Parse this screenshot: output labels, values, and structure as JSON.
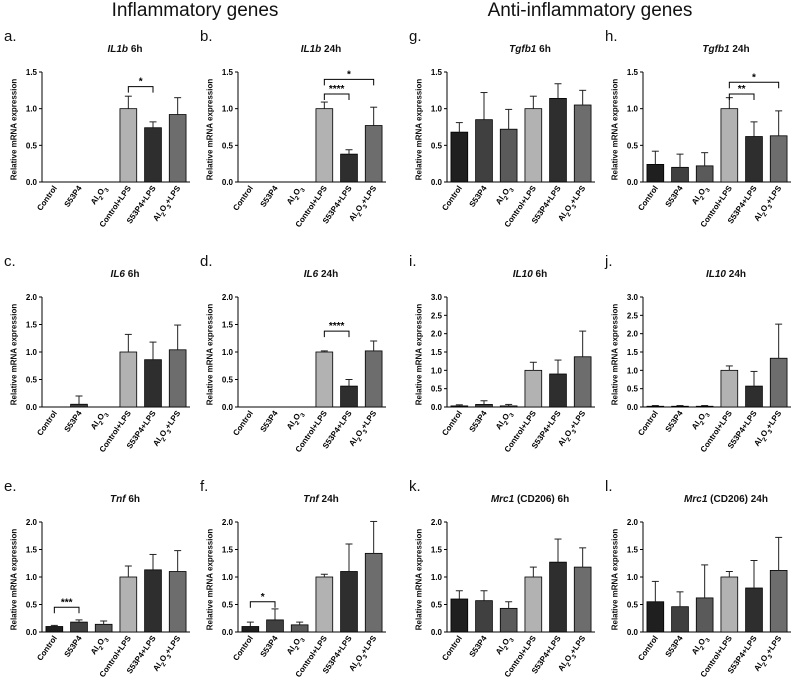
{
  "header": {
    "inflammatory": "Inflammatory genes",
    "anti_inflammatory": "Anti-inflammatory genes"
  },
  "colors": {
    "Control": "#1f1f1f",
    "S53P4": "#404040",
    "Al2O3": "#5a5a5a",
    "Control+LPS": "#b2b2b2",
    "S53P4+LPS": "#2e2e2e",
    "Al2O3+LPS": "#6d6d6d"
  },
  "chart_data": [
    {
      "id": "a",
      "letter": "a.",
      "gene": "IL1b",
      "time": " 6h",
      "type": "bar",
      "ylabel": "Relative mRNA expression",
      "ylim": [
        0,
        1.5
      ],
      "yticks": [
        "0.0",
        "0.5",
        "1.0",
        "1.5"
      ],
      "ytick_values": [
        0,
        0.5,
        1.0,
        1.5
      ],
      "categories": [
        "Control",
        "S53P4",
        "Al2O3",
        "Control+LPS",
        "S53P4+LPS",
        "Al2O3+LPS"
      ],
      "values": [
        0,
        0,
        0,
        1.0,
        0.74,
        0.92
      ],
      "errors": [
        0,
        0,
        0,
        0.17,
        0.08,
        0.23
      ],
      "significance": [
        {
          "from": 3,
          "to": 4,
          "label": "*",
          "y": 1.3
        }
      ]
    },
    {
      "id": "b",
      "letter": "b.",
      "gene": "IL1b",
      "time": " 24h",
      "type": "bar",
      "ylabel": "Relative mRNA expression",
      "ylim": [
        0,
        1.5
      ],
      "yticks": [
        "0.0",
        "0.5",
        "1.0",
        "1.5"
      ],
      "ytick_values": [
        0,
        0.5,
        1.0,
        1.5
      ],
      "categories": [
        "Control",
        "S53P4",
        "Al2O3",
        "Control+LPS",
        "S53P4+LPS",
        "Al2O3+LPS"
      ],
      "values": [
        0,
        0,
        0,
        1.0,
        0.38,
        0.77
      ],
      "errors": [
        0,
        0,
        0,
        0.09,
        0.06,
        0.25
      ],
      "significance": [
        {
          "from": 3,
          "to": 4,
          "label": "****",
          "y": 1.2
        },
        {
          "from": 3,
          "to": 5,
          "label": "*",
          "y": 1.4
        }
      ]
    },
    {
      "id": "g",
      "letter": "g.",
      "gene": "Tgfb1",
      "time": " 6h",
      "type": "bar",
      "ylabel": "Relative mRNA expression",
      "ylim": [
        0,
        1.5
      ],
      "yticks": [
        "0.0",
        "0.5",
        "1.0",
        "1.5"
      ],
      "ytick_values": [
        0,
        0.5,
        1.0,
        1.5
      ],
      "categories": [
        "Control",
        "S53P4",
        "Al2O3",
        "Control+LPS",
        "S53P4+LPS",
        "Al2O3+LPS"
      ],
      "values": [
        0.68,
        0.85,
        0.72,
        1.0,
        1.14,
        1.05
      ],
      "errors": [
        0.13,
        0.37,
        0.27,
        0.17,
        0.2,
        0.2
      ],
      "significance": []
    },
    {
      "id": "h",
      "letter": "h.",
      "gene": "Tgfb1",
      "time": " 24h",
      "type": "bar",
      "ylabel": "Relative mRNA expression",
      "ylim": [
        0,
        1.5
      ],
      "yticks": [
        "0.0",
        "0.5",
        "1.0",
        "1.5"
      ],
      "ytick_values": [
        0,
        0.5,
        1.0,
        1.5
      ],
      "categories": [
        "Control",
        "S53P4",
        "Al2O3",
        "Control+LPS",
        "S53P4+LPS",
        "Al2O3+LPS"
      ],
      "values": [
        0.24,
        0.2,
        0.22,
        1.0,
        0.62,
        0.63
      ],
      "errors": [
        0.18,
        0.18,
        0.18,
        0.15,
        0.2,
        0.34
      ],
      "significance": [
        {
          "from": 3,
          "to": 4,
          "label": "**",
          "y": 1.2
        },
        {
          "from": 3,
          "to": 5,
          "label": "*",
          "y": 1.36
        }
      ]
    },
    {
      "id": "c",
      "letter": "c.",
      "gene": "IL6",
      "time": " 6h",
      "type": "bar",
      "ylabel": "Relative mRNA expression",
      "ylim": [
        0,
        2.0
      ],
      "yticks": [
        "0.0",
        "0.5",
        "1.0",
        "1.5",
        "2.0"
      ],
      "ytick_values": [
        0,
        0.5,
        1.0,
        1.5,
        2.0
      ],
      "categories": [
        "Control",
        "S53P4",
        "Al2O3",
        "Control+LPS",
        "S53P4+LPS",
        "Al2O3+LPS"
      ],
      "values": [
        0,
        0.05,
        0,
        1.0,
        0.86,
        1.04
      ],
      "errors": [
        0,
        0.15,
        0,
        0.32,
        0.32,
        0.45
      ],
      "significance": []
    },
    {
      "id": "d",
      "letter": "d.",
      "gene": "IL6",
      "time": " 24h",
      "type": "bar",
      "ylabel": "Relative mRNA expression",
      "ylim": [
        0,
        2.0
      ],
      "yticks": [
        "0.0",
        "0.5",
        "1.0",
        "1.5",
        "2.0"
      ],
      "ytick_values": [
        0,
        0.5,
        1.0,
        1.5,
        2.0
      ],
      "categories": [
        "Control",
        "S53P4",
        "Al2O3",
        "Control+LPS",
        "S53P4+LPS",
        "Al2O3+LPS"
      ],
      "values": [
        0,
        0,
        0,
        1.0,
        0.38,
        1.02
      ],
      "errors": [
        0,
        0,
        0,
        0.02,
        0.12,
        0.18
      ],
      "significance": [
        {
          "from": 3,
          "to": 4,
          "label": "****",
          "y": 1.38
        }
      ]
    },
    {
      "id": "i",
      "letter": "i.",
      "gene": "IL10",
      "time": " 6h",
      "type": "bar",
      "ylabel": "Relative mRNA expression",
      "ylim": [
        0,
        3
      ],
      "yticks": [
        "0.0",
        "0.5",
        "1.0",
        "1.5",
        "2.0",
        "2.5",
        "3.0"
      ],
      "ytick_values": [
        0,
        0.5,
        1.0,
        1.5,
        2.0,
        2.5,
        3.0
      ],
      "categories": [
        "Control",
        "S53P4",
        "Al2O3",
        "Control+LPS",
        "S53P4+LPS",
        "Al2O3+LPS"
      ],
      "values": [
        0.03,
        0.07,
        0.03,
        1.0,
        0.9,
        1.37
      ],
      "errors": [
        0.03,
        0.1,
        0.04,
        0.22,
        0.38,
        0.7
      ],
      "significance": []
    },
    {
      "id": "j",
      "letter": "j.",
      "gene": "IL10",
      "time": " 24h",
      "type": "bar",
      "ylabel": "Relative mRNA expression",
      "ylim": [
        0,
        3
      ],
      "yticks": [
        "0.0",
        "0.5",
        "1.0",
        "1.5",
        "2.0",
        "2.5",
        "3.0"
      ],
      "ytick_values": [
        0,
        0.5,
        1.0,
        1.5,
        2.0,
        2.5,
        3.0
      ],
      "categories": [
        "Control",
        "S53P4",
        "Al2O3",
        "Control+LPS",
        "S53P4+LPS",
        "Al2O3+LPS"
      ],
      "values": [
        0.02,
        0.02,
        0.02,
        1.0,
        0.57,
        1.33
      ],
      "errors": [
        0.02,
        0.02,
        0.02,
        0.12,
        0.4,
        0.93
      ],
      "significance": []
    },
    {
      "id": "e",
      "letter": "e.",
      "gene": "Tnf",
      "time": " 6h",
      "type": "bar",
      "ylabel": "Relative mRNA expression",
      "ylim": [
        0,
        2.0
      ],
      "yticks": [
        "0.0",
        "0.5",
        "1.0",
        "1.5",
        "2.0"
      ],
      "ytick_values": [
        0,
        0.5,
        1.0,
        1.5,
        2.0
      ],
      "categories": [
        "Control",
        "S53P4",
        "Al2O3",
        "Control+LPS",
        "S53P4+LPS",
        "Al2O3+LPS"
      ],
      "values": [
        0.1,
        0.18,
        0.14,
        1.0,
        1.13,
        1.1
      ],
      "errors": [
        0.02,
        0.04,
        0.06,
        0.2,
        0.28,
        0.38
      ],
      "significance": [
        {
          "from": 0,
          "to": 1,
          "label": "***",
          "y": 0.45
        }
      ]
    },
    {
      "id": "f",
      "letter": "f.",
      "gene": "Tnf",
      "time": " 24h",
      "type": "bar",
      "ylabel": "Relative mRNA expression",
      "ylim": [
        0,
        2.0
      ],
      "yticks": [
        "0.0",
        "0.5",
        "1.0",
        "1.5",
        "2.0"
      ],
      "ytick_values": [
        0,
        0.5,
        1.0,
        1.5,
        2.0
      ],
      "categories": [
        "Control",
        "S53P4",
        "Al2O3",
        "Control+LPS",
        "S53P4+LPS",
        "Al2O3+LPS"
      ],
      "values": [
        0.1,
        0.22,
        0.13,
        1.0,
        1.1,
        1.43
      ],
      "errors": [
        0.08,
        0.2,
        0.05,
        0.05,
        0.5,
        0.58
      ],
      "significance": [
        {
          "from": 0,
          "to": 1,
          "label": "*",
          "y": 0.55
        }
      ]
    },
    {
      "id": "k",
      "letter": "k.",
      "gene": "Mrc1",
      "time": " (CD206) 6h",
      "type": "bar",
      "ylabel": "Relative mRNA expression",
      "ylim": [
        0,
        2.0
      ],
      "yticks": [
        "0.0",
        "0.5",
        "1.0",
        "1.5",
        "2.0"
      ],
      "ytick_values": [
        0,
        0.5,
        1.0,
        1.5,
        2.0
      ],
      "categories": [
        "Control",
        "S53P4",
        "Al2O3",
        "Control+LPS",
        "S53P4+LPS",
        "Al2O3+LPS"
      ],
      "values": [
        0.6,
        0.57,
        0.43,
        1.0,
        1.27,
        1.18
      ],
      "errors": [
        0.15,
        0.18,
        0.12,
        0.18,
        0.42,
        0.35
      ],
      "significance": []
    },
    {
      "id": "l",
      "letter": "l.",
      "gene": "Mrc1",
      "time": " (CD206) 24h",
      "type": "bar",
      "ylabel": "Relative mRNA expression",
      "ylim": [
        0,
        2.0
      ],
      "yticks": [
        "0.0",
        "0.5",
        "1.0",
        "1.5",
        "2.0"
      ],
      "ytick_values": [
        0,
        0.5,
        1.0,
        1.5,
        2.0
      ],
      "categories": [
        "Control",
        "S53P4",
        "Al2O3",
        "Control+LPS",
        "S53P4+LPS",
        "Al2O3+LPS"
      ],
      "values": [
        0.55,
        0.46,
        0.62,
        1.0,
        0.8,
        1.12
      ],
      "errors": [
        0.37,
        0.27,
        0.6,
        0.1,
        0.5,
        0.6
      ],
      "significance": []
    }
  ]
}
